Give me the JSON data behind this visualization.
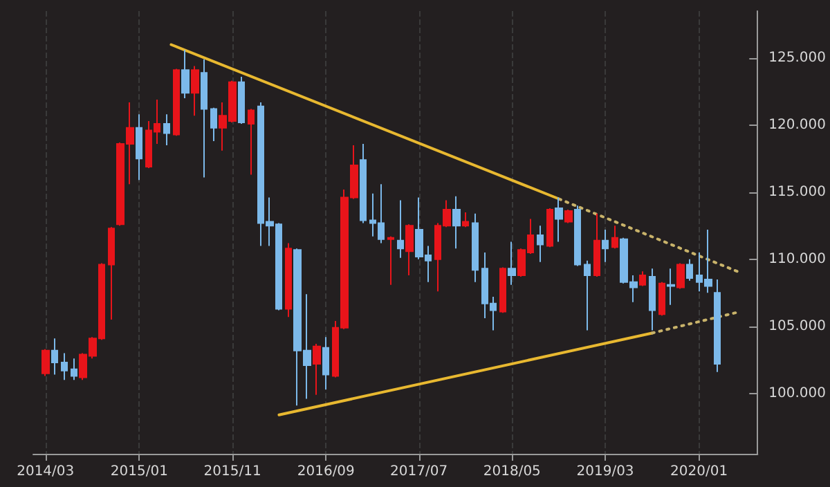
{
  "chart_data": {
    "type": "candlestick",
    "x": [
      "2014-03",
      "2014-04",
      "2014-05",
      "2014-06",
      "2014-07",
      "2014-08",
      "2014-09",
      "2014-10",
      "2014-11",
      "2014-12",
      "2015-01",
      "2015-02",
      "2015-03",
      "2015-04",
      "2015-05",
      "2015-06",
      "2015-07",
      "2015-08",
      "2015-09",
      "2015-10",
      "2015-11",
      "2015-12",
      "2016-01",
      "2016-02",
      "2016-03",
      "2016-04",
      "2016-05",
      "2016-06",
      "2016-07",
      "2016-08",
      "2016-09",
      "2016-10",
      "2016-11",
      "2016-12",
      "2017-01",
      "2017-02",
      "2017-03",
      "2017-04",
      "2017-05",
      "2017-06",
      "2017-07",
      "2017-08",
      "2017-09",
      "2017-10",
      "2017-11",
      "2017-12",
      "2018-01",
      "2018-02",
      "2018-03",
      "2018-04",
      "2018-05",
      "2018-06",
      "2018-07",
      "2018-08",
      "2018-09",
      "2018-10",
      "2018-11",
      "2018-12",
      "2019-01",
      "2019-02",
      "2019-03",
      "2019-04",
      "2019-05",
      "2019-06",
      "2019-07",
      "2019-08",
      "2019-09",
      "2019-10",
      "2019-11",
      "2019-12",
      "2020-01",
      "2020-02",
      "2020-03"
    ],
    "ohlc": [
      [
        101.5,
        103.3,
        101.3,
        103.2
      ],
      [
        103.2,
        104.1,
        101.4,
        102.3
      ],
      [
        102.3,
        103.0,
        101.0,
        101.7
      ],
      [
        101.8,
        102.6,
        101.0,
        101.3
      ],
      [
        101.2,
        103.0,
        101.0,
        102.9
      ],
      [
        102.8,
        104.2,
        102.6,
        104.1
      ],
      [
        104.1,
        109.7,
        104.0,
        109.6
      ],
      [
        109.6,
        112.4,
        105.5,
        112.3
      ],
      [
        112.6,
        118.7,
        112.5,
        118.6
      ],
      [
        118.6,
        121.7,
        115.6,
        119.8
      ],
      [
        119.8,
        120.8,
        115.9,
        117.5
      ],
      [
        116.9,
        120.3,
        116.8,
        119.6
      ],
      [
        119.5,
        121.9,
        118.6,
        120.1
      ],
      [
        120.1,
        120.8,
        118.5,
        119.4
      ],
      [
        119.3,
        124.2,
        119.2,
        124.1
      ],
      [
        124.1,
        125.6,
        122.0,
        122.4
      ],
      [
        122.4,
        124.4,
        120.7,
        124.1
      ],
      [
        123.9,
        124.9,
        116.1,
        121.2
      ],
      [
        121.2,
        121.3,
        118.8,
        119.8
      ],
      [
        119.8,
        121.7,
        118.1,
        120.7
      ],
      [
        120.3,
        123.3,
        120.2,
        123.2
      ],
      [
        123.2,
        123.6,
        120.1,
        120.2
      ],
      [
        120.1,
        121.2,
        116.3,
        121.1
      ],
      [
        121.4,
        121.7,
        111.0,
        112.7
      ],
      [
        112.8,
        114.6,
        111.0,
        112.5
      ],
      [
        112.6,
        112.7,
        106.2,
        106.3
      ],
      [
        106.3,
        111.2,
        105.7,
        110.8
      ],
      [
        110.7,
        110.8,
        99.1,
        103.2
      ],
      [
        103.2,
        107.4,
        99.6,
        102.1
      ],
      [
        102.2,
        103.7,
        99.9,
        103.5
      ],
      [
        103.4,
        104.2,
        100.3,
        101.4
      ],
      [
        101.3,
        105.4,
        101.2,
        104.9
      ],
      [
        104.9,
        115.2,
        104.8,
        114.6
      ],
      [
        114.6,
        118.5,
        114.5,
        117.0
      ],
      [
        117.4,
        118.6,
        112.7,
        112.9
      ],
      [
        112.9,
        114.9,
        111.7,
        112.7
      ],
      [
        112.7,
        115.6,
        111.2,
        111.5
      ],
      [
        111.5,
        111.7,
        108.1,
        111.6
      ],
      [
        111.4,
        114.4,
        110.1,
        110.8
      ],
      [
        110.6,
        112.6,
        108.8,
        112.5
      ],
      [
        112.2,
        114.6,
        110.0,
        110.2
      ],
      [
        110.3,
        111.0,
        108.3,
        109.9
      ],
      [
        110.0,
        112.7,
        107.6,
        112.5
      ],
      [
        112.5,
        114.4,
        112.4,
        113.7
      ],
      [
        113.7,
        114.7,
        110.8,
        112.5
      ],
      [
        112.5,
        113.5,
        112.4,
        112.8
      ],
      [
        112.7,
        113.4,
        108.3,
        109.2
      ],
      [
        109.3,
        110.5,
        105.6,
        106.7
      ],
      [
        106.7,
        107.2,
        104.7,
        106.2
      ],
      [
        106.1,
        109.4,
        106.0,
        109.3
      ],
      [
        109.3,
        111.3,
        108.1,
        108.8
      ],
      [
        108.8,
        110.8,
        108.7,
        110.7
      ],
      [
        110.5,
        113.0,
        110.4,
        111.8
      ],
      [
        111.8,
        112.5,
        109.8,
        111.1
      ],
      [
        111.0,
        113.8,
        110.9,
        113.7
      ],
      [
        113.8,
        114.6,
        111.3,
        113.0
      ],
      [
        112.8,
        113.7,
        112.7,
        113.6
      ],
      [
        113.7,
        114.0,
        109.5,
        109.6
      ],
      [
        109.6,
        109.9,
        104.7,
        108.8
      ],
      [
        108.8,
        113.4,
        108.7,
        111.4
      ],
      [
        111.4,
        112.2,
        109.8,
        110.8
      ],
      [
        110.9,
        112.5,
        110.8,
        111.6
      ],
      [
        111.5,
        111.6,
        108.2,
        108.3
      ],
      [
        108.3,
        108.8,
        106.8,
        107.9
      ],
      [
        108.1,
        109.1,
        108.0,
        108.8
      ],
      [
        108.7,
        109.3,
        104.7,
        106.2
      ],
      [
        105.9,
        108.3,
        105.8,
        108.2
      ],
      [
        108.1,
        109.3,
        106.6,
        108.0
      ],
      [
        107.9,
        109.7,
        107.8,
        109.6
      ],
      [
        109.6,
        110.0,
        108.4,
        108.6
      ],
      [
        108.8,
        110.5,
        107.6,
        108.3
      ],
      [
        108.5,
        112.2,
        107.5,
        108.0
      ],
      [
        107.5,
        108.5,
        101.6,
        102.2
      ]
    ],
    "colors": [
      "#e8141a",
      "#7cb9ea",
      "#7cb9ea",
      "#7cb9ea",
      "#e8141a",
      "#e8141a",
      "#e8141a",
      "#e8141a",
      "#e8141a",
      "#e8141a",
      "#7cb9ea",
      "#e8141a",
      "#e8141a",
      "#7cb9ea",
      "#e8141a",
      "#7cb9ea",
      "#e8141a",
      "#7cb9ea",
      "#7cb9ea",
      "#e8141a",
      "#e8141a",
      "#7cb9ea",
      "#e8141a",
      "#7cb9ea",
      "#7cb9ea",
      "#7cb9ea",
      "#e8141a",
      "#7cb9ea",
      "#7cb9ea",
      "#e8141a",
      "#7cb9ea",
      "#e8141a",
      "#e8141a",
      "#e8141a",
      "#7cb9ea",
      "#7cb9ea",
      "#7cb9ea",
      "#e8141a",
      "#7cb9ea",
      "#e8141a",
      "#7cb9ea",
      "#7cb9ea",
      "#e8141a",
      "#e8141a",
      "#7cb9ea",
      "#e8141a",
      "#7cb9ea",
      "#7cb9ea",
      "#7cb9ea",
      "#e8141a",
      "#7cb9ea",
      "#e8141a",
      "#e8141a",
      "#7cb9ea",
      "#e8141a",
      "#7cb9ea",
      "#e8141a",
      "#7cb9ea",
      "#7cb9ea",
      "#e8141a",
      "#7cb9ea",
      "#e8141a",
      "#7cb9ea",
      "#7cb9ea",
      "#e8141a",
      "#7cb9ea",
      "#e8141a",
      "#7cb9ea",
      "#e8141a",
      "#7cb9ea",
      "#7cb9ea",
      "#7cb9ea",
      "#7cb9ea"
    ],
    "series": [
      {
        "type": "line",
        "x": [
          "2015-04-15",
          "2018-10-01"
        ],
        "values": [
          126.0,
          114.5
        ],
        "color": "#e8b830",
        "line_style": "solid"
      },
      {
        "type": "line",
        "x": [
          "2018-10-01",
          "2020-05-15"
        ],
        "values": [
          114.5,
          109.0
        ],
        "color": "#c9b36a",
        "line_style": "dotted"
      },
      {
        "type": "line",
        "x": [
          "2016-04-01",
          "2019-08-01"
        ],
        "values": [
          98.4,
          104.5
        ],
        "color": "#e8b830",
        "line_style": "solid"
      },
      {
        "type": "line",
        "x": [
          "2019-08-01",
          "2020-05-15"
        ],
        "values": [
          104.5,
          106.1
        ],
        "color": "#c9b36a",
        "line_style": "dotted"
      }
    ],
    "xlim": [
      "2014-01-20",
      "2020-07-10"
    ],
    "xticks": [
      {
        "value": "2014-03",
        "label": "2014/03"
      },
      {
        "value": "2015-01",
        "label": "2015/01"
      },
      {
        "value": "2015-11",
        "label": "2015/11"
      },
      {
        "value": "2016-09",
        "label": "2016/09"
      },
      {
        "value": "2017-07",
        "label": "2017/07"
      },
      {
        "value": "2018-05",
        "label": "2018/05"
      },
      {
        "value": "2019-03",
        "label": "2019/03"
      },
      {
        "value": "2020-01",
        "label": "2020/01"
      }
    ],
    "ylim": [
      95.5,
      128.5
    ],
    "yticks": [
      {
        "value": 100,
        "label": "100.000"
      },
      {
        "value": 105,
        "label": "105.000"
      },
      {
        "value": 110,
        "label": "110.000"
      },
      {
        "value": 115,
        "label": "115.000"
      },
      {
        "value": 120,
        "label": "120.000"
      },
      {
        "value": 125,
        "label": "125.000"
      }
    ],
    "grid": "x",
    "marker": "none"
  }
}
